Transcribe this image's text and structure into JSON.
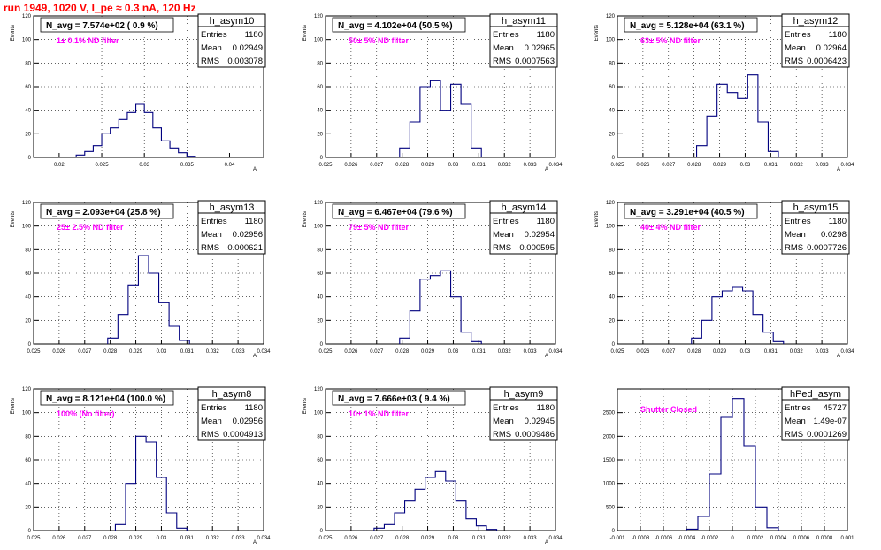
{
  "page_title": "run 1949,  1020 V, I_pe ≈ 0.3 nA, 120 Hz",
  "colors": {
    "title": "#ff0000",
    "annotation": "#ff00ff",
    "histogram": "#00007f",
    "grid": "#000000"
  },
  "chart_data": [
    {
      "type": "bar",
      "name": "h_asym10",
      "header": "N_avg = 7.574e+02 ( 0.9 %)",
      "annotation": "1± 0.1% ND filter",
      "stats": {
        "entries": "1180",
        "mean": "0.02949",
        "rms": "0.003078"
      },
      "ylabel": "Events",
      "xlabel": "A",
      "xlim": [
        0.017,
        0.044
      ],
      "ylim": [
        0,
        120
      ],
      "xticks": [
        0.02,
        0.025,
        0.03,
        0.035,
        0.04
      ],
      "xtick_labels": [
        "0.02",
        "0.025",
        "0.03",
        "0.035",
        "0.04"
      ],
      "yticks": [
        0,
        20,
        40,
        60,
        80,
        100,
        120
      ],
      "x": [
        0.0225,
        0.0235,
        0.0245,
        0.0255,
        0.0265,
        0.0275,
        0.0285,
        0.0295,
        0.0305,
        0.0315,
        0.0325,
        0.0335,
        0.0345,
        0.0355
      ],
      "values": [
        2,
        5,
        10,
        20,
        25,
        32,
        38,
        45,
        38,
        25,
        14,
        8,
        4,
        1
      ]
    },
    {
      "type": "bar",
      "name": "h_asym11",
      "header": "N_avg = 4.102e+04 (50.5 %)",
      "annotation": "50± 5% ND filter",
      "stats": {
        "entries": "1180",
        "mean": "0.02965",
        "rms": "0.0007563"
      },
      "ylabel": "Events",
      "xlabel": "A",
      "xlim": [
        0.025,
        0.034
      ],
      "ylim": [
        0,
        120
      ],
      "xticks": [
        0.025,
        0.026,
        0.027,
        0.028,
        0.029,
        0.03,
        0.031,
        0.032,
        0.033,
        0.034
      ],
      "xtick_labels": [
        "0.025",
        "0.026",
        "0.027",
        "0.028",
        "0.029",
        "0.03",
        "0.031",
        "0.032",
        "0.033",
        "0.034"
      ],
      "yticks": [
        0,
        20,
        40,
        60,
        80,
        100,
        120
      ],
      "x": [
        0.0281,
        0.0285,
        0.0289,
        0.0293,
        0.0297,
        0.0301,
        0.0305,
        0.0309
      ],
      "values": [
        8,
        30,
        60,
        65,
        40,
        62,
        45,
        8
      ]
    },
    {
      "type": "bar",
      "name": "h_asym12",
      "header": "N_avg = 5.128e+04 (63.1 %)",
      "annotation": "63± 5% ND filter",
      "stats": {
        "entries": "1180",
        "mean": "0.02964",
        "rms": "0.0006423"
      },
      "ylabel": "Events",
      "xlabel": "A",
      "xlim": [
        0.025,
        0.034
      ],
      "ylim": [
        0,
        120
      ],
      "xticks": [
        0.025,
        0.026,
        0.027,
        0.028,
        0.029,
        0.03,
        0.031,
        0.032,
        0.033,
        0.034
      ],
      "xtick_labels": [
        "0.025",
        "0.026",
        "0.027",
        "0.028",
        "0.029",
        "0.03",
        "0.031",
        "0.032",
        "0.033",
        "0.034"
      ],
      "yticks": [
        0,
        20,
        40,
        60,
        80,
        100,
        120
      ],
      "x": [
        0.0283,
        0.0287,
        0.0291,
        0.0295,
        0.0299,
        0.0303,
        0.0307,
        0.0311
      ],
      "values": [
        10,
        35,
        62,
        55,
        50,
        70,
        30,
        5
      ]
    },
    {
      "type": "bar",
      "name": "h_asym13",
      "header": "N_avg = 2.093e+04 (25.8 %)",
      "annotation": "25± 2.5% ND filter",
      "stats": {
        "entries": "1180",
        "mean": "0.02956",
        "rms": "0.000621"
      },
      "ylabel": "Events",
      "xlabel": "A",
      "xlim": [
        0.025,
        0.034
      ],
      "ylim": [
        0,
        120
      ],
      "xticks": [
        0.025,
        0.026,
        0.027,
        0.028,
        0.029,
        0.03,
        0.031,
        0.032,
        0.033,
        0.034
      ],
      "xtick_labels": [
        "0.025",
        "0.026",
        "0.027",
        "0.028",
        "0.029",
        "0.03",
        "0.031",
        "0.032",
        "0.033",
        "0.034"
      ],
      "yticks": [
        0,
        20,
        40,
        60,
        80,
        100,
        120
      ],
      "x": [
        0.0281,
        0.0285,
        0.0289,
        0.0293,
        0.0297,
        0.0301,
        0.0305,
        0.0309
      ],
      "values": [
        5,
        25,
        50,
        75,
        60,
        35,
        15,
        3
      ]
    },
    {
      "type": "bar",
      "name": "h_asym14",
      "header": "N_avg = 6.467e+04 (79.6 %)",
      "annotation": "79± 5% ND filter",
      "stats": {
        "entries": "1180",
        "mean": "0.02954",
        "rms": "0.000595"
      },
      "ylabel": "Events",
      "xlabel": "A",
      "xlim": [
        0.025,
        0.034
      ],
      "ylim": [
        0,
        120
      ],
      "xticks": [
        0.025,
        0.026,
        0.027,
        0.028,
        0.029,
        0.03,
        0.031,
        0.032,
        0.033,
        0.034
      ],
      "xtick_labels": [
        "0.025",
        "0.026",
        "0.027",
        "0.028",
        "0.029",
        "0.03",
        "0.031",
        "0.032",
        "0.033",
        "0.034"
      ],
      "yticks": [
        0,
        20,
        40,
        60,
        80,
        100,
        120
      ],
      "x": [
        0.0281,
        0.0285,
        0.0289,
        0.0293,
        0.0297,
        0.0301,
        0.0305,
        0.0309
      ],
      "values": [
        5,
        28,
        55,
        58,
        62,
        40,
        10,
        2
      ]
    },
    {
      "type": "bar",
      "name": "h_asym15",
      "header": "N_avg = 3.291e+04 (40.5 %)",
      "annotation": "40± 4% ND filter",
      "stats": {
        "entries": "1180",
        "mean": "0.0298",
        "rms": "0.0007726"
      },
      "ylabel": "Events",
      "xlabel": "A",
      "xlim": [
        0.025,
        0.034
      ],
      "ylim": [
        0,
        120
      ],
      "xticks": [
        0.025,
        0.026,
        0.027,
        0.028,
        0.029,
        0.03,
        0.031,
        0.032,
        0.033,
        0.034
      ],
      "xtick_labels": [
        "0.025",
        "0.026",
        "0.027",
        "0.028",
        "0.029",
        "0.03",
        "0.031",
        "0.032",
        "0.033",
        "0.034"
      ],
      "yticks": [
        0,
        20,
        40,
        60,
        80,
        100,
        120
      ],
      "x": [
        0.0281,
        0.0285,
        0.0289,
        0.0293,
        0.0297,
        0.0301,
        0.0305,
        0.0309,
        0.0313
      ],
      "values": [
        5,
        20,
        40,
        45,
        48,
        45,
        25,
        10,
        2
      ]
    },
    {
      "type": "bar",
      "name": "h_asym8",
      "header": "N_avg = 8.121e+04 (100.0 %)",
      "annotation": "100% (No filter)",
      "stats": {
        "entries": "1180",
        "mean": "0.02956",
        "rms": "0.0004913"
      },
      "ylabel": "Events",
      "xlabel": "A",
      "xlim": [
        0.025,
        0.034
      ],
      "ylim": [
        0,
        120
      ],
      "xticks": [
        0.025,
        0.026,
        0.027,
        0.028,
        0.029,
        0.03,
        0.031,
        0.032,
        0.033,
        0.034
      ],
      "xtick_labels": [
        "0.025",
        "0.026",
        "0.027",
        "0.028",
        "0.029",
        "0.03",
        "0.031",
        "0.032",
        "0.033",
        "0.034"
      ],
      "yticks": [
        0,
        20,
        40,
        60,
        80,
        100,
        120
      ],
      "x": [
        0.0284,
        0.0288,
        0.0292,
        0.0296,
        0.03,
        0.0304,
        0.0308
      ],
      "values": [
        5,
        40,
        80,
        75,
        45,
        15,
        2
      ]
    },
    {
      "type": "bar",
      "name": "h_asym9",
      "header": "N_avg = 7.666e+03 ( 9.4 %)",
      "annotation": "10± 1% ND filter",
      "stats": {
        "entries": "1180",
        "mean": "0.02945",
        "rms": "0.0009486"
      },
      "ylabel": "Events",
      "xlabel": "A",
      "xlim": [
        0.025,
        0.034
      ],
      "ylim": [
        0,
        120
      ],
      "xticks": [
        0.025,
        0.026,
        0.027,
        0.028,
        0.029,
        0.03,
        0.031,
        0.032,
        0.033,
        0.034
      ],
      "xtick_labels": [
        "0.025",
        "0.026",
        "0.027",
        "0.028",
        "0.029",
        "0.03",
        "0.031",
        "0.032",
        "0.033",
        "0.034"
      ],
      "yticks": [
        0,
        20,
        40,
        60,
        80,
        100,
        120
      ],
      "x": [
        0.0271,
        0.0275,
        0.0279,
        0.0283,
        0.0287,
        0.0291,
        0.0295,
        0.0299,
        0.0303,
        0.0307,
        0.0311,
        0.0315
      ],
      "values": [
        2,
        5,
        15,
        25,
        35,
        45,
        50,
        42,
        25,
        10,
        4,
        1
      ]
    },
    {
      "type": "bar",
      "name": "hPed_asym",
      "header": "",
      "annotation": "Shutter Closed",
      "stats": {
        "entries": "45727",
        "mean": "1.49e-07",
        "rms": "0.0001269"
      },
      "ylabel": "",
      "xlabel": "",
      "xlim": [
        -0.001,
        0.001
      ],
      "ylim": [
        0,
        3000
      ],
      "xticks": [
        -0.001,
        -0.0008,
        -0.0006,
        -0.0004,
        -0.0002,
        0,
        0.0002,
        0.0004,
        0.0006,
        0.0008,
        0.001
      ],
      "xtick_labels": [
        "-0.001",
        "-0.0008",
        "-0.0006",
        "-0.0004",
        "-0.0002",
        "0",
        "0.0002",
        "0.0004",
        "0.0006",
        "0.0008",
        "0.001"
      ],
      "yticks": [
        0,
        500,
        1000,
        1500,
        2000,
        2500
      ],
      "x": [
        -0.00035,
        -0.00025,
        -0.00015,
        -5e-05,
        5e-05,
        0.00015,
        0.00025,
        0.00035
      ],
      "values": [
        30,
        300,
        1200,
        2400,
        2800,
        1800,
        500,
        60
      ]
    }
  ]
}
